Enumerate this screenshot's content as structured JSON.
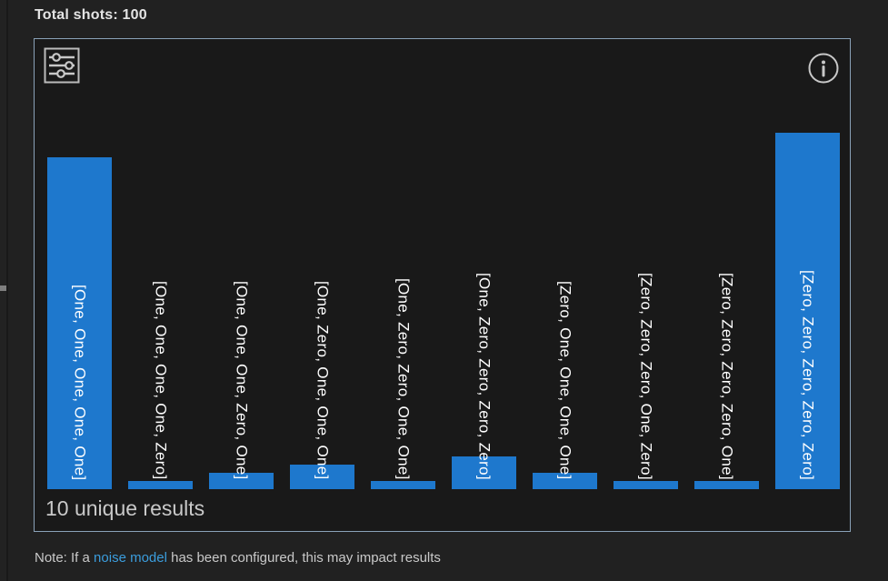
{
  "header": {
    "total_shots": "Total shots: 100"
  },
  "panel": {
    "unique_results_label": "10 unique results",
    "icons": {
      "settings": "sliders-icon",
      "info": "info-icon"
    }
  },
  "note": {
    "prefix": "Note: If a ",
    "link_text": "noise model",
    "suffix": " has been configured, this may impact results"
  },
  "colors": {
    "bar": "#1e78cd",
    "bar_label": "#ffffff",
    "panel_border": "#8aa2b8",
    "panel_bg": "#191919",
    "page_bg": "#212121",
    "link": "#3b9ddd",
    "text": "#c9c9c9"
  },
  "chart_data": {
    "type": "bar",
    "orientation": "vertical",
    "categories": [
      "[One, One, One, One, One]",
      "[One, One, One, One, Zero]",
      "[One, One, One, Zero, One]",
      "[One, Zero, One, One, One]",
      "[One, Zero, Zero, One, One]",
      "[One, Zero, Zero, Zero, Zero]",
      "[Zero, One, One, One, One]",
      "[Zero, Zero, Zero, One, Zero]",
      "[Zero, Zero, Zero, Zero, One]",
      "[Zero, Zero, Zero, Zero, Zero]"
    ],
    "values": [
      41,
      1,
      2,
      3,
      1,
      4,
      2,
      1,
      1,
      44
    ],
    "total_shots": 100,
    "unique_results": 10,
    "bar_labels_inside": true,
    "axes_visible": false,
    "grid": false,
    "legend": false
  }
}
